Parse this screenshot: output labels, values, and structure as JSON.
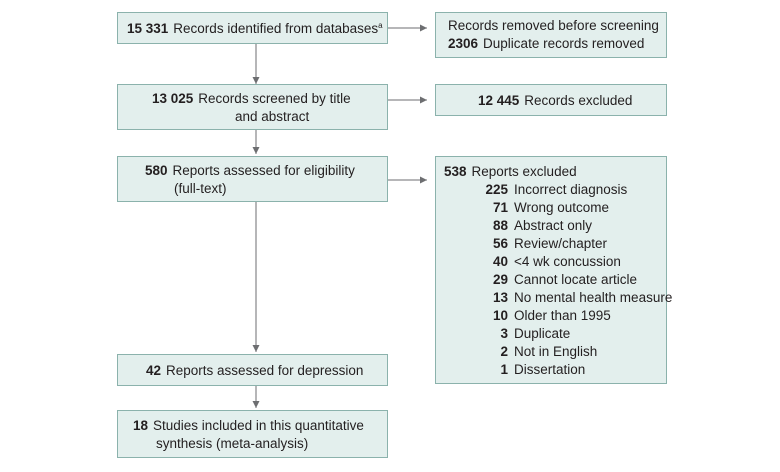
{
  "identified": {
    "num": "15 331",
    "label": "Records identified from databases",
    "sup": "a"
  },
  "removed_before": {
    "title": "Records removed before screening",
    "num": "2306",
    "label": "Duplicate records removed"
  },
  "screened": {
    "num": "13 025",
    "line1": "Records screened by title",
    "line2": "and abstract"
  },
  "excluded": {
    "num": "12 445",
    "label": "Records excluded"
  },
  "eligibility": {
    "num": "580",
    "line1": "Reports assessed for eligibility",
    "line2": "(full-text)"
  },
  "reports_excluded": {
    "num": "538",
    "label": "Reports excluded",
    "items": [
      {
        "num": "225",
        "label": "Incorrect diagnosis"
      },
      {
        "num": "71",
        "label": "Wrong outcome"
      },
      {
        "num": "88",
        "label": "Abstract only"
      },
      {
        "num": "56",
        "label": "Review/chapter"
      },
      {
        "num": "40",
        "label": "<4 wk concussion"
      },
      {
        "num": "29",
        "label": "Cannot locate article"
      },
      {
        "num": "13",
        "label": "No mental health measure"
      },
      {
        "num": "10",
        "label": "Older than 1995"
      },
      {
        "num": "3",
        "label": "Duplicate"
      },
      {
        "num": "2",
        "label": "Not in English"
      },
      {
        "num": "1",
        "label": "Dissertation"
      }
    ]
  },
  "depression": {
    "num": "42",
    "label": "Reports assessed for depression"
  },
  "included": {
    "num": "18",
    "line1": "Studies included in this quantitative",
    "line2": "synthesis (meta-analysis)"
  },
  "colors": {
    "box_fill": "#e3efed",
    "box_border": "#8bb2ac",
    "arrow": "#6d6e71"
  }
}
